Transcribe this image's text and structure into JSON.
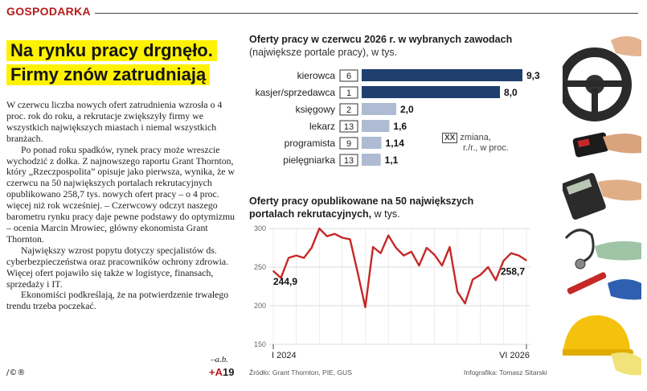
{
  "section": {
    "label": "GOSPODARKA"
  },
  "headline": {
    "line1": "Na rynku pracy drgnęło.",
    "line2": "Firmy znów zatrudniają"
  },
  "article": {
    "paragraphs": [
      "W czerwcu liczba nowych ofert zatrudnienia wzrosła o 4 proc. rok do roku, a rekrutacje zwiększyły firmy we wszystkich największych miastach i niemal wszystkich branżach.",
      "Po ponad roku spadków, rynek pracy może wreszcie wychodzić z dołka. Z najnowszego raportu Grant Thornton, który „Rzeczpospolita” opisuje jako pierwsza, wynika, że w czerwcu na 50 największych portalach rekrutacyjnych opublikowano 258,7 tys. nowych ofert pracy – o 4 proc. więcej niż rok wcześniej. – Czerwcowy odczyt naszego barometru rynku pracy daje pewne podstawy do optymizmu – ocenia Marcin Mrowiec, główny ekonomista Grant Thornton.",
      "Największy wzrost popytu dotyczy specjalistów ds. cyberbezpieczeństwa oraz pracowników ochrony zdrowia. Więcej ofert pojawiło się także w logistyce, finansach, sprzedaży i IT.",
      "Ekonomiści podkreślają, że na potwierdzenie trwałego trendu trzeba poczekać."
    ],
    "signature": "–a.b.",
    "cc": "/©®",
    "page_ref_plus": "+A",
    "page_ref_num": "19"
  },
  "chart1": {
    "title": "Oferty pracy w czerwcu 2026 r. w wybranych zawodach",
    "subtitle": "(największe portale pracy), w tys.",
    "legend_symbol": "XX",
    "legend_text_line1": "zmiana,",
    "legend_text_line2": "r./r., w proc.",
    "bar_color": "#1f3f6e",
    "bar_light_color": "#aebbd3"
  },
  "chart2": {
    "title": "Oferty pracy opublikowane na 50 największych portalach rekrutacyjnych,",
    "unit": "w tys.",
    "line_color": "#c62828"
  },
  "footer": {
    "source": "Źródło: Grant Thornton, PIE, GUS",
    "credit": "Infografika: Tomasz Sitarski"
  },
  "chart_data": [
    {
      "type": "bar",
      "title": "Oferty pracy w czerwcu 2026 r. w wybranych zawodach",
      "subtitle": "(największe portale pracy), w tys.",
      "categories": [
        "kierowca",
        "kasjer/sprzedawca",
        "księgowy",
        "lekarz",
        "programista",
        "pielęgniarka"
      ],
      "values": [
        9.3,
        8.0,
        2.0,
        1.6,
        1.14,
        1.1
      ],
      "value_labels": [
        "9,3",
        "8,0",
        "2,0",
        "1,6",
        "1,14",
        "1,1"
      ],
      "change_yoy_pct": [
        "6",
        "1",
        "2",
        "13",
        "9",
        "13"
      ],
      "xlim": [
        0,
        9.3
      ]
    },
    {
      "type": "line",
      "title": "Oferty pracy opublikowane na 50 największych portalach rekrutacyjnych",
      "ylabel": "w tys.",
      "ylim": [
        150,
        300
      ],
      "yticks": [
        150,
        200,
        250,
        300
      ],
      "x_labels": [
        "I 2024",
        "VI 2026"
      ],
      "first_label": "244,9",
      "last_label": "258,7",
      "values": [
        244.9,
        236,
        262,
        265,
        262,
        275,
        300,
        290,
        293,
        288,
        286,
        243,
        198,
        276,
        268,
        291,
        275,
        265,
        270,
        252,
        275,
        266,
        252,
        276,
        218,
        203,
        234,
        240,
        250,
        233,
        258,
        268,
        265,
        258.7
      ]
    }
  ]
}
